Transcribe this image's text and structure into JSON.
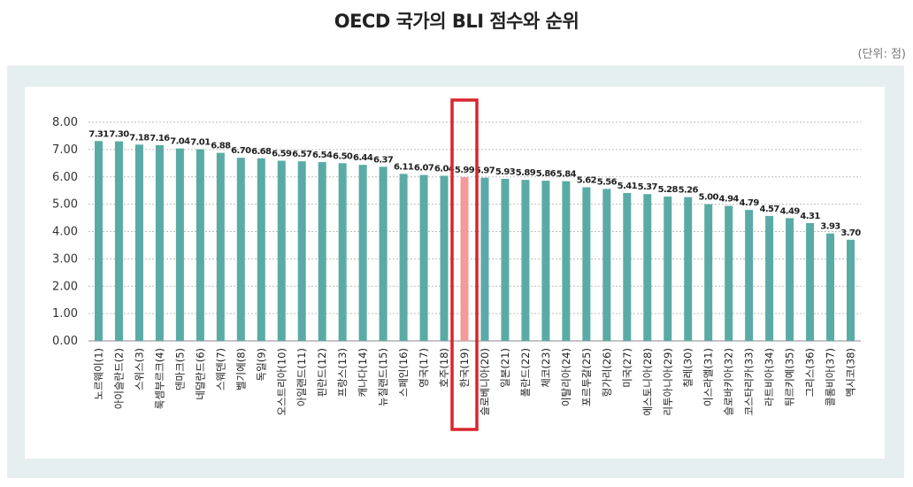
{
  "title": "OECD 국가의 BLI 점수와 순위",
  "unit_note": "(단위: 점)",
  "colors": {
    "bar": "#5aaba6",
    "highlight_bar": "#f49a9a",
    "highlight_box": "#d9262b",
    "panel": "#e6efef"
  },
  "chart_data": {
    "type": "bar",
    "title": "OECD 국가의 BLI 점수와 순위",
    "xlabel": "",
    "ylabel": "",
    "ylim": [
      0,
      8
    ],
    "yticks": [
      "0.00",
      "1.00",
      "2.00",
      "3.00",
      "4.00",
      "5.00",
      "6.00",
      "7.00",
      "8.00"
    ],
    "grid": "horizontal-dotted",
    "highlight_category": "한국(19)",
    "categories": [
      "노르웨이(1)",
      "아이슬란드(2)",
      "스위스(3)",
      "룩셈부르크(4)",
      "덴마크(5)",
      "네덜란드(6)",
      "스웨덴(7)",
      "벨기에(8)",
      "독일(9)",
      "오스트리아(10)",
      "아일랜드(11)",
      "핀란드(12)",
      "프랑스(13)",
      "캐나다(14)",
      "뉴질랜드(15)",
      "스페인(16)",
      "영국(17)",
      "호주(18)",
      "한국(19)",
      "슬로베니아(20)",
      "일본(21)",
      "폴란드(22)",
      "체코(23)",
      "이탈리아(24)",
      "포르투갈(25)",
      "헝가리(26)",
      "미국(27)",
      "에스토니아(28)",
      "리투아니아(29)",
      "칠레(30)",
      "이스라엘(31)",
      "슬로바키아(32)",
      "코스타리카(33)",
      "라트비아(34)",
      "튀르키예(35)",
      "그리스(36)",
      "콜롬비아(37)",
      "멕시코(38)"
    ],
    "values": [
      7.31,
      7.3,
      7.18,
      7.16,
      7.04,
      7.01,
      6.88,
      6.7,
      6.68,
      6.59,
      6.57,
      6.54,
      6.5,
      6.44,
      6.37,
      6.11,
      6.07,
      6.04,
      5.99,
      5.97,
      5.93,
      5.89,
      5.86,
      5.84,
      5.62,
      5.56,
      5.41,
      5.37,
      5.28,
      5.26,
      5.0,
      4.94,
      4.79,
      4.57,
      4.49,
      4.31,
      3.93,
      3.7
    ],
    "value_labels": [
      "7.31",
      "7.30",
      "7.18",
      "7.16",
      "7.04",
      "7.01",
      "6.88",
      "6.70",
      "6.68",
      "6.59",
      "6.57",
      "6.54",
      "6.50",
      "6.44",
      "6.37",
      "6.11",
      "6.07",
      "6.04",
      "5.99",
      "5.97",
      "5.93",
      "5.89",
      "5.86",
      "5.84",
      "5.62",
      "5.56",
      "5.41",
      "5.37",
      "5.28",
      "5.26",
      "5.00",
      "4.94",
      "4.79",
      "4.57",
      "4.49",
      "4.31",
      "3.93",
      "3.70"
    ]
  }
}
